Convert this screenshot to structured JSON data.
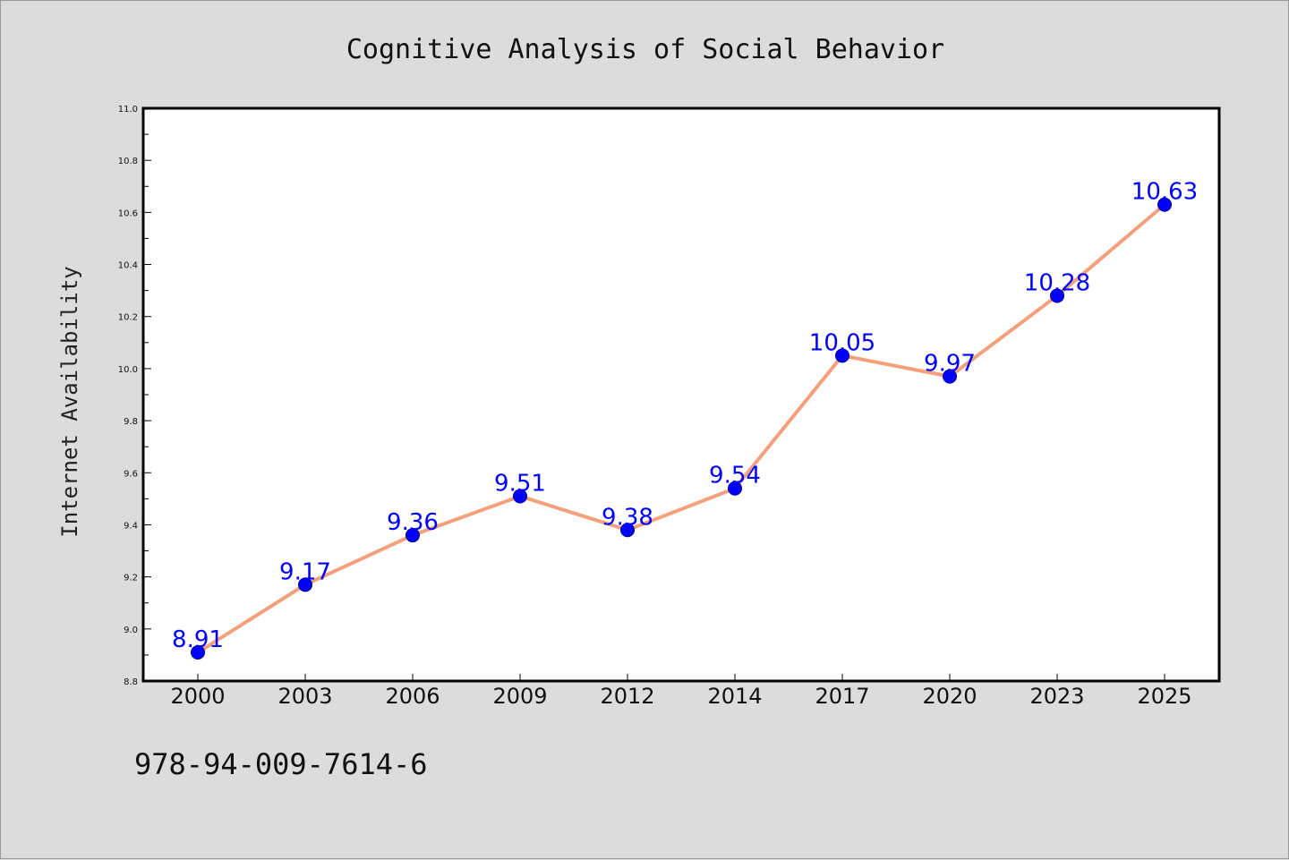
{
  "chart_data": {
    "type": "line",
    "title": "Cognitive Analysis of Social Behavior",
    "xlabel": "",
    "ylabel": "Internet Availability",
    "categories": [
      "2000",
      "2003",
      "2006",
      "2009",
      "2012",
      "2014",
      "2017",
      "2020",
      "2023",
      "2025"
    ],
    "series": [
      {
        "values": [
          8.91,
          9.17,
          9.36,
          9.51,
          9.38,
          9.54,
          10.05,
          9.97,
          10.28,
          10.63
        ]
      }
    ],
    "data_labels": [
      "8.91",
      "9.17",
      "9.36",
      "9.51",
      "9.38",
      "9.54",
      "10.05",
      "9.97",
      "10.28",
      "10.63"
    ],
    "ylim": [
      8.8,
      11.0
    ],
    "yticks": [
      "8.8",
      "9.0",
      "9.2",
      "9.4",
      "9.6",
      "9.8",
      "10.0",
      "10.2",
      "10.4",
      "10.6",
      "10.8",
      "11.0"
    ],
    "grid": false,
    "line_color": "#f4a07c",
    "marker_color": "#0000ff",
    "label_color": "#0000ff"
  },
  "footer": {
    "isbn": "978-94-009-7614-6"
  }
}
